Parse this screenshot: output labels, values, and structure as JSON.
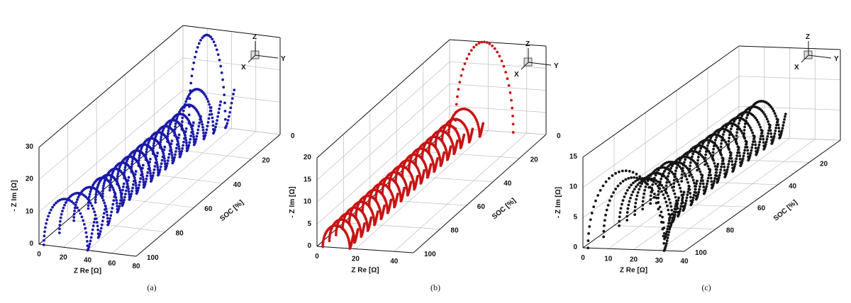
{
  "chart_data": [
    {
      "type": "scatter",
      "panel_caption": "(a)",
      "xlabel": "Z Re [Ω]",
      "ylabel": "SOC [%]",
      "zlabel": "- Z Im [Ω]",
      "xlim": [
        0,
        80
      ],
      "ylim": [
        0,
        100
      ],
      "zlim": [
        0,
        30
      ],
      "xticks": [
        0,
        20,
        40,
        60,
        80
      ],
      "yticks": [
        0,
        20,
        40,
        60,
        80,
        100
      ],
      "zticks": [
        0,
        10,
        20,
        30
      ],
      "color": "#1a1aa8",
      "axis_labels": {
        "x": "X",
        "y": "Y",
        "z": "Z"
      },
      "series": [
        {
          "soc": 0,
          "r0": 5,
          "rct": 30,
          "peak": 28,
          "tail": 12
        },
        {
          "soc": 5,
          "r0": 5,
          "rct": 26,
          "peak": 13,
          "tail": 10
        },
        {
          "soc": 10,
          "r0": 5,
          "rct": 24,
          "peak": 10,
          "tail": 10
        },
        {
          "soc": 15,
          "r0": 5,
          "rct": 22,
          "peak": 9,
          "tail": 9
        },
        {
          "soc": 20,
          "r0": 5,
          "rct": 22,
          "peak": 9,
          "tail": 9
        },
        {
          "soc": 25,
          "r0": 5,
          "rct": 22,
          "peak": 9,
          "tail": 9
        },
        {
          "soc": 30,
          "r0": 5,
          "rct": 22,
          "peak": 9,
          "tail": 9
        },
        {
          "soc": 35,
          "r0": 5,
          "rct": 22,
          "peak": 9,
          "tail": 9
        },
        {
          "soc": 40,
          "r0": 5,
          "rct": 22,
          "peak": 9,
          "tail": 9
        },
        {
          "soc": 45,
          "r0": 5,
          "rct": 22,
          "peak": 9,
          "tail": 9
        },
        {
          "soc": 50,
          "r0": 5,
          "rct": 22,
          "peak": 9,
          "tail": 9
        },
        {
          "soc": 55,
          "r0": 5,
          "rct": 22,
          "peak": 9,
          "tail": 9
        },
        {
          "soc": 60,
          "r0": 5,
          "rct": 22,
          "peak": 9,
          "tail": 9
        },
        {
          "soc": 65,
          "r0": 5,
          "rct": 22,
          "peak": 9,
          "tail": 9
        },
        {
          "soc": 70,
          "r0": 5,
          "rct": 24,
          "peak": 10,
          "tail": 9
        },
        {
          "soc": 80,
          "r0": 5,
          "rct": 28,
          "peak": 11,
          "tail": 10
        },
        {
          "soc": 90,
          "r0": 5,
          "rct": 32,
          "peak": 13,
          "tail": 10
        },
        {
          "soc": 100,
          "r0": 4,
          "rct": 36,
          "peak": 15,
          "tail": 10
        }
      ]
    },
    {
      "type": "scatter",
      "panel_caption": "(b)",
      "xlabel": "Z Re [Ω]",
      "ylabel": "SOC [%]",
      "zlabel": "- Z Im [Ω]",
      "xlim": [
        0,
        50
      ],
      "ylim": [
        0,
        100
      ],
      "zlim": [
        0,
        20
      ],
      "xticks": [
        0,
        20,
        40
      ],
      "yticks": [
        0,
        20,
        40,
        60,
        80,
        100
      ],
      "zticks": [
        0,
        5,
        10,
        15,
        20
      ],
      "color": "#c81414",
      "axis_labels": {
        "x": "X",
        "y": "Y",
        "z": "Z"
      },
      "series": [
        {
          "soc": 0,
          "r0": 3,
          "rct": 30,
          "peak": 20,
          "tail": 0
        },
        {
          "soc": 5,
          "r0": 3,
          "rct": 16,
          "peak": 6,
          "tail": 3
        },
        {
          "soc": 10,
          "r0": 3,
          "rct": 14,
          "peak": 5,
          "tail": 3
        },
        {
          "soc": 15,
          "r0": 3,
          "rct": 13,
          "peak": 5,
          "tail": 3
        },
        {
          "soc": 20,
          "r0": 3,
          "rct": 13,
          "peak": 5,
          "tail": 3
        },
        {
          "soc": 25,
          "r0": 3,
          "rct": 13,
          "peak": 5,
          "tail": 3
        },
        {
          "soc": 30,
          "r0": 3,
          "rct": 13,
          "peak": 5,
          "tail": 3
        },
        {
          "soc": 35,
          "r0": 3,
          "rct": 13,
          "peak": 5,
          "tail": 3
        },
        {
          "soc": 40,
          "r0": 3,
          "rct": 13,
          "peak": 5,
          "tail": 3
        },
        {
          "soc": 45,
          "r0": 3,
          "rct": 13,
          "peak": 5,
          "tail": 3
        },
        {
          "soc": 50,
          "r0": 3,
          "rct": 13,
          "peak": 5,
          "tail": 3
        },
        {
          "soc": 55,
          "r0": 3,
          "rct": 13,
          "peak": 5,
          "tail": 3
        },
        {
          "soc": 60,
          "r0": 3,
          "rct": 13,
          "peak": 5,
          "tail": 3
        },
        {
          "soc": 65,
          "r0": 3,
          "rct": 13,
          "peak": 5,
          "tail": 3
        },
        {
          "soc": 70,
          "r0": 3,
          "rct": 13,
          "peak": 5,
          "tail": 3
        },
        {
          "soc": 75,
          "r0": 3,
          "rct": 13,
          "peak": 5,
          "tail": 3
        },
        {
          "soc": 80,
          "r0": 3,
          "rct": 13,
          "peak": 5,
          "tail": 3
        },
        {
          "soc": 85,
          "r0": 3,
          "rct": 13,
          "peak": 5,
          "tail": 3
        },
        {
          "soc": 90,
          "r0": 3,
          "rct": 13,
          "peak": 5,
          "tail": 3
        },
        {
          "soc": 95,
          "r0": 3,
          "rct": 13,
          "peak": 5,
          "tail": 3
        },
        {
          "soc": 100,
          "r0": 3,
          "rct": 14,
          "peak": 5,
          "tail": 3
        }
      ]
    },
    {
      "type": "scatter",
      "panel_caption": "(c)",
      "xlabel": "Z Re [Ω]",
      "ylabel": "SOC [%]",
      "zlabel": "- Z Im [Ω]",
      "xlim": [
        0,
        40
      ],
      "ylim": [
        0,
        100
      ],
      "zlim": [
        0,
        15
      ],
      "xticks": [
        0,
        10,
        20,
        30,
        40
      ],
      "yticks": [
        20,
        40,
        60,
        80,
        100
      ],
      "zticks": [
        0,
        5,
        10,
        15
      ],
      "color": "#151515",
      "axis_labels": {
        "x": "X",
        "y": "Y",
        "z": "Z"
      },
      "series": [
        {
          "soc": 0,
          "r0": 2,
          "rct": 14,
          "peak": 6,
          "tail": 4
        },
        {
          "soc": 5,
          "r0": 2,
          "rct": 14,
          "peak": 6,
          "tail": 4
        },
        {
          "soc": 10,
          "r0": 2,
          "rct": 14,
          "peak": 6,
          "tail": 4
        },
        {
          "soc": 15,
          "r0": 2,
          "rct": 14,
          "peak": 6,
          "tail": 4
        },
        {
          "soc": 20,
          "r0": 2,
          "rct": 14,
          "peak": 6,
          "tail": 4
        },
        {
          "soc": 25,
          "r0": 2,
          "rct": 14,
          "peak": 6,
          "tail": 4
        },
        {
          "soc": 30,
          "r0": 2,
          "rct": 14,
          "peak": 6,
          "tail": 4
        },
        {
          "soc": 35,
          "r0": 2,
          "rct": 14,
          "peak": 6,
          "tail": 4
        },
        {
          "soc": 40,
          "r0": 2,
          "rct": 14,
          "peak": 6,
          "tail": 4
        },
        {
          "soc": 45,
          "r0": 2,
          "rct": 15,
          "peak": 6,
          "tail": 4
        },
        {
          "soc": 50,
          "r0": 2,
          "rct": 15,
          "peak": 6,
          "tail": 4
        },
        {
          "soc": 55,
          "r0": 2,
          "rct": 15,
          "peak": 6,
          "tail": 4
        },
        {
          "soc": 60,
          "r0": 2,
          "rct": 16,
          "peak": 7,
          "tail": 4
        },
        {
          "soc": 65,
          "r0": 2,
          "rct": 16,
          "peak": 7,
          "tail": 4
        },
        {
          "soc": 70,
          "r0": 2,
          "rct": 17,
          "peak": 7,
          "tail": 4
        },
        {
          "soc": 75,
          "r0": 2,
          "rct": 18,
          "peak": 7,
          "tail": 4
        },
        {
          "soc": 80,
          "r0": 2,
          "rct": 20,
          "peak": 8,
          "tail": 4
        },
        {
          "soc": 90,
          "r0": 2,
          "rct": 24,
          "peak": 10,
          "tail": 4
        },
        {
          "soc": 100,
          "r0": 2,
          "rct": 30,
          "peak": 13,
          "tail": 4
        }
      ]
    }
  ]
}
